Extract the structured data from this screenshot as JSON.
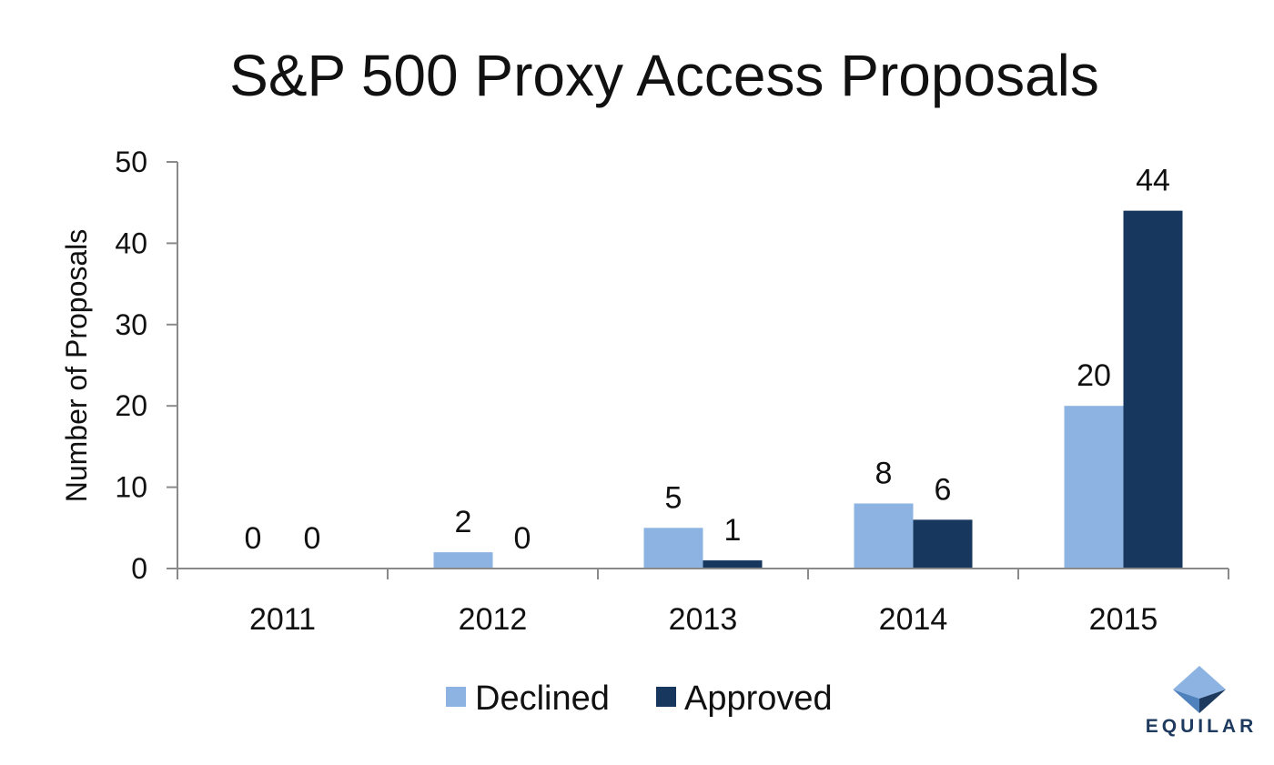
{
  "chart_data": {
    "type": "bar",
    "title": "S&P 500 Proxy Access Proposals",
    "ylabel": "Number of Proposals",
    "xlabel": "",
    "categories": [
      "2011",
      "2012",
      "2013",
      "2014",
      "2015"
    ],
    "series": [
      {
        "name": "Declined",
        "values": [
          0,
          2,
          5,
          8,
          20
        ],
        "color": "#8db3e2"
      },
      {
        "name": "Approved",
        "values": [
          0,
          0,
          1,
          6,
          44
        ],
        "color": "#17375e"
      }
    ],
    "ylim": [
      0,
      50
    ],
    "yticks": [
      0,
      10,
      20,
      30,
      40,
      50
    ],
    "grid": false,
    "legend": "bottom"
  },
  "logo": {
    "text": "EQUILAR",
    "colors": [
      "#1e3a5f",
      "#4f81bd",
      "#8db3e2"
    ]
  }
}
